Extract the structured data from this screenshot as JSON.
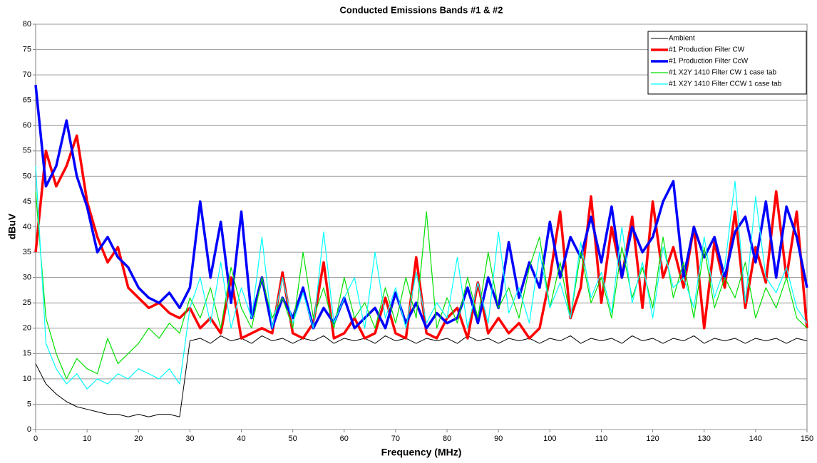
{
  "chart_data": {
    "type": "line",
    "title": "Conducted Emissions Bands #1 & #2",
    "x_label": "Frequency (MHz)",
    "y_label": "dBuV",
    "xlim": [
      0,
      150
    ],
    "ylim": [
      0,
      80
    ],
    "xticks": [
      0,
      10,
      20,
      30,
      40,
      50,
      60,
      70,
      80,
      90,
      100,
      110,
      120,
      130,
      140,
      150
    ],
    "yticks": [
      0,
      5,
      10,
      15,
      20,
      25,
      30,
      35,
      40,
      45,
      50,
      55,
      60,
      65,
      70,
      75,
      80
    ],
    "grid": true,
    "legend": "top-right",
    "x": [
      0,
      2,
      4,
      6,
      8,
      10,
      12,
      14,
      16,
      18,
      20,
      22,
      24,
      26,
      28,
      30,
      32,
      34,
      36,
      38,
      40,
      42,
      44,
      46,
      48,
      50,
      52,
      54,
      56,
      58,
      60,
      62,
      64,
      66,
      68,
      70,
      72,
      74,
      76,
      78,
      80,
      82,
      84,
      86,
      88,
      90,
      92,
      94,
      96,
      98,
      100,
      102,
      104,
      106,
      108,
      110,
      112,
      114,
      116,
      118,
      120,
      122,
      124,
      126,
      128,
      130,
      132,
      134,
      136,
      138,
      140,
      142,
      144,
      146,
      148,
      150
    ],
    "series": [
      {
        "name": "Ambient",
        "color": "#000000",
        "values": [
          13,
          9,
          7,
          5.5,
          4.5,
          4,
          3.5,
          3,
          3,
          2.5,
          3,
          2.5,
          3,
          3,
          2.5,
          17.5,
          18,
          17,
          18.5,
          17.5,
          18,
          17,
          18.5,
          17.5,
          18,
          17,
          18,
          17.5,
          18.5,
          17,
          18,
          17.5,
          18,
          17,
          18.5,
          17.5,
          18,
          17,
          18,
          17.5,
          18,
          17,
          18.5,
          17.5,
          18,
          17,
          18,
          17.5,
          18,
          17,
          18,
          17.5,
          18.5,
          17,
          18,
          17.5,
          18,
          17,
          18.5,
          17.5,
          18,
          17,
          18,
          17.5,
          18.5,
          17,
          18,
          17.5,
          18,
          17,
          18,
          17.5,
          18,
          17,
          18,
          17.5
        ]
      },
      {
        "name": "#1 Production Filter CW",
        "color": "#ff0000",
        "values": [
          35,
          55,
          48,
          52,
          58,
          45,
          38,
          33,
          36,
          28,
          26,
          24,
          25,
          23,
          22,
          24,
          20,
          22,
          19,
          30,
          18,
          19,
          20,
          19,
          31,
          19,
          18,
          21,
          33,
          18,
          19,
          22,
          18,
          19,
          26,
          19,
          18,
          34,
          19,
          18,
          22,
          24,
          18,
          29,
          19,
          22,
          19,
          21,
          18,
          20,
          30,
          43,
          22,
          28,
          46,
          25,
          40,
          30,
          42,
          24,
          45,
          30,
          36,
          28,
          40,
          20,
          37,
          28,
          43,
          24,
          36,
          29,
          47,
          30,
          43,
          20
        ]
      },
      {
        "name": "#1 Production Filter CcW",
        "color": "#0000ff",
        "values": [
          68,
          48,
          52,
          61,
          50,
          44,
          35,
          38,
          34,
          32,
          28,
          26,
          25,
          27,
          24,
          28,
          45,
          30,
          41,
          25,
          43,
          22,
          30,
          20,
          26,
          22,
          28,
          20,
          24,
          21,
          26,
          20,
          22,
          24,
          20,
          27,
          21,
          25,
          20,
          23,
          21,
          22,
          28,
          21,
          30,
          24,
          37,
          26,
          33,
          28,
          41,
          30,
          38,
          34,
          42,
          33,
          44,
          30,
          40,
          35,
          38,
          45,
          49,
          30,
          40,
          34,
          38,
          30,
          39,
          42,
          33,
          45,
          30,
          44,
          38,
          28
        ]
      },
      {
        "name": "#1 X2Y 1410 Filter CW 1 case tab",
        "color": "#00e000",
        "values": [
          47,
          22,
          15,
          10,
          14,
          12,
          11,
          18,
          13,
          15,
          17,
          20,
          18,
          21,
          19,
          26,
          22,
          28,
          20,
          32,
          24,
          20,
          30,
          22,
          26,
          20,
          35,
          22,
          28,
          20,
          30,
          22,
          25,
          20,
          28,
          21,
          30,
          22,
          43,
          20,
          26,
          21,
          30,
          22,
          35,
          24,
          28,
          22,
          32,
          38,
          24,
          33,
          22,
          35,
          25,
          30,
          22,
          36,
          26,
          32,
          24,
          38,
          26,
          33,
          22,
          36,
          24,
          30,
          26,
          33,
          22,
          28,
          24,
          30,
          22,
          20
        ]
      },
      {
        "name": "#1 X2Y 1410 Filter CCW 1 case tab",
        "color": "#00ffff",
        "values": [
          52,
          17,
          12,
          9,
          11,
          8,
          10,
          9,
          11,
          10,
          12,
          11,
          10,
          12,
          9,
          24,
          30,
          21,
          33,
          20,
          28,
          22,
          38,
          20,
          30,
          21,
          27,
          20,
          39,
          21,
          26,
          30,
          20,
          35,
          22,
          28,
          20,
          31,
          21,
          25,
          22,
          34,
          20,
          29,
          21,
          39,
          23,
          28,
          21,
          35,
          24,
          29,
          22,
          37,
          26,
          31,
          23,
          40,
          25,
          33,
          22,
          36,
          28,
          30,
          24,
          38,
          26,
          32,
          49,
          25,
          46,
          30,
          27,
          32,
          24,
          21
        ]
      }
    ]
  }
}
